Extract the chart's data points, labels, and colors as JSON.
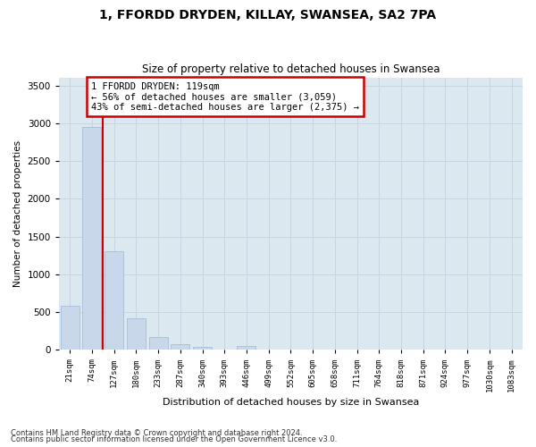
{
  "title": "1, FFORDD DRYDEN, KILLAY, SWANSEA, SA2 7PA",
  "subtitle": "Size of property relative to detached houses in Swansea",
  "xlabel": "Distribution of detached houses by size in Swansea",
  "ylabel": "Number of detached properties",
  "footnote1": "Contains HM Land Registry data © Crown copyright and database right 2024.",
  "footnote2": "Contains public sector information licensed under the Open Government Licence v3.0.",
  "categories": [
    "21sqm",
    "74sqm",
    "127sqm",
    "180sqm",
    "233sqm",
    "287sqm",
    "340sqm",
    "393sqm",
    "446sqm",
    "499sqm",
    "552sqm",
    "605sqm",
    "658sqm",
    "711sqm",
    "764sqm",
    "818sqm",
    "871sqm",
    "924sqm",
    "977sqm",
    "1030sqm",
    "1083sqm"
  ],
  "values": [
    580,
    2950,
    1310,
    420,
    170,
    75,
    40,
    0,
    55,
    0,
    0,
    0,
    0,
    0,
    0,
    0,
    0,
    0,
    0,
    0,
    0
  ],
  "bar_color": "#c8d8ea",
  "bar_edge_color": "#a0b8d0",
  "vline_x_index": 2,
  "vline_color": "#cc0000",
  "annotation_text": "1 FFORDD DRYDEN: 119sqm\n← 56% of detached houses are smaller (3,059)\n43% of semi-detached houses are larger (2,375) →",
  "annotation_box_color": "#cc0000",
  "annotation_text_color": "#000000",
  "background_color": "#ffffff",
  "grid_color": "#c8d4e0",
  "title_fontsize": 10,
  "subtitle_fontsize": 8.5,
  "ylim": [
    0,
    3600
  ],
  "yticks": [
    0,
    500,
    1000,
    1500,
    2000,
    2500,
    3000,
    3500
  ]
}
